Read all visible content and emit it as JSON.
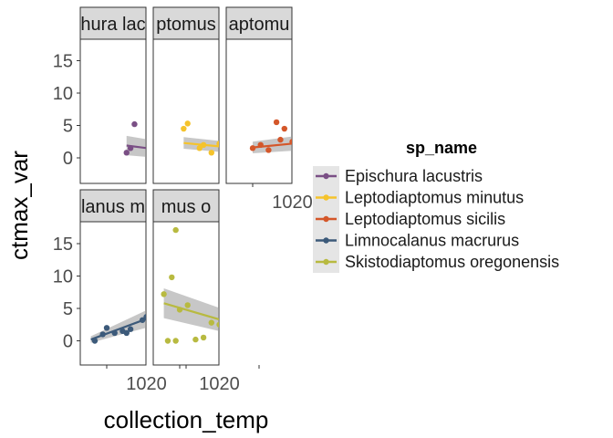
{
  "chart_data": {
    "type": "scatter",
    "facet_layout": "wrap-3-columns",
    "xlabel": "collection_temp",
    "ylabel": "ctmax_var",
    "legend_title": "sp_name",
    "legend_position": "right",
    "grid": false,
    "smooth": "linear-fit-with-confidence-band",
    "xlim": [
      6.5,
      27
    ],
    "ylim": [
      -3.8,
      18.8
    ],
    "x_ticks": [
      10,
      20
    ],
    "x_tick_labels": [
      "10",
      "20"
    ],
    "y_ticks": [
      0,
      5,
      10,
      15
    ],
    "y_tick_labels": [
      "0",
      "5",
      "10",
      "15"
    ],
    "panels": [
      {
        "strip_label": "Epischura lacustris",
        "strip_visible": "hura lac",
        "color": "#7A4F85",
        "points": [
          [
            13.5,
            5.2
          ],
          [
            12.5,
            0.8
          ],
          [
            13.0,
            1.5
          ],
          [
            15.5,
            1.2
          ],
          [
            16.5,
            0.4
          ],
          [
            17.5,
            0.6
          ],
          [
            18.0,
            0.2
          ],
          [
            18.5,
            0.8
          ],
          [
            19.0,
            0.3
          ],
          [
            20.0,
            0.4
          ],
          [
            20.5,
            0.0
          ],
          [
            21.0,
            0.5
          ],
          [
            22.0,
            0.1
          ],
          [
            22.5,
            0.0
          ],
          [
            23.0,
            0.3
          ],
          [
            24.0,
            0.6
          ],
          [
            24.5,
            0.2
          ],
          [
            25.5,
            0.5
          ],
          [
            25.0,
            0.0
          ]
        ],
        "fit": {
          "x": [
            12.5,
            25.5
          ],
          "y": [
            1.9,
            -0.1
          ],
          "ci_low": [
            0.4,
            -0.9
          ],
          "ci_high": [
            3.4,
            0.7
          ]
        },
        "has_x_axis": false
      },
      {
        "strip_label": "Leptodiaptomus minutus",
        "strip_visible": "ptomus",
        "color": "#F5C32C",
        "points": [
          [
            10.5,
            4.5
          ],
          [
            11.0,
            5.3
          ],
          [
            12.5,
            1.5
          ],
          [
            13.0,
            2.0
          ],
          [
            14.0,
            0.8
          ],
          [
            15.0,
            2.2
          ],
          [
            15.5,
            0.0
          ],
          [
            16.5,
            1.8
          ],
          [
            17.0,
            1.0
          ],
          [
            18.0,
            1.5
          ],
          [
            18.5,
            0.5
          ],
          [
            19.0,
            2.0
          ],
          [
            19.5,
            0.2
          ],
          [
            20.0,
            4.5
          ],
          [
            20.5,
            1.2
          ],
          [
            21.0,
            0.6
          ],
          [
            21.5,
            0.0
          ],
          [
            22.0,
            1.0
          ],
          [
            22.5,
            0.3
          ],
          [
            23.0,
            1.5
          ],
          [
            23.5,
            0.4
          ],
          [
            24.0,
            0.8
          ],
          [
            24.5,
            0.0
          ],
          [
            25.0,
            0.6
          ],
          [
            25.5,
            0.2
          ],
          [
            26.0,
            0.5
          ]
        ],
        "fit": {
          "x": [
            10.5,
            26.5
          ],
          "y": [
            2.3,
            0.4
          ],
          "ci_low": [
            1.4,
            -0.3
          ],
          "ci_high": [
            3.2,
            1.1
          ]
        },
        "has_x_axis": false
      },
      {
        "strip_label": "Leptodiaptomus sicilis",
        "strip_visible": "aptomu",
        "color": "#D4572A",
        "points": [
          [
            10.0,
            1.5
          ],
          [
            11.0,
            2.0
          ],
          [
            12.0,
            1.2
          ],
          [
            13.0,
            5.5
          ],
          [
            13.5,
            2.8
          ],
          [
            14.0,
            4.5
          ],
          [
            15.0,
            2.5
          ],
          [
            15.5,
            1.5
          ],
          [
            16.0,
            0.8
          ],
          [
            16.5,
            2.2
          ],
          [
            17.0,
            1.0
          ],
          [
            18.0,
            2.8
          ],
          [
            18.5,
            3.5
          ],
          [
            19.0,
            0.5
          ],
          [
            19.5,
            2.5
          ]
        ],
        "fit": {
          "x": [
            10.0,
            20.0
          ],
          "y": [
            1.6,
            2.8
          ],
          "ci_low": [
            0.7,
            1.5
          ],
          "ci_high": [
            2.5,
            4.1
          ]
        },
        "has_x_axis": true
      },
      {
        "strip_label": "Limnocalanus macrurus",
        "strip_visible": "lanus m",
        "color": "#3C5A7A",
        "points": [
          [
            8.5,
            0.0
          ],
          [
            9.5,
            1.0
          ],
          [
            10.0,
            2.0
          ],
          [
            11.0,
            1.2
          ],
          [
            12.0,
            1.5
          ],
          [
            12.5,
            1.2
          ],
          [
            13.0,
            1.8
          ],
          [
            15.0,
            3.7
          ],
          [
            14.5,
            3.2
          ]
        ],
        "fit": {
          "x": [
            8.0,
            15.5
          ],
          "y": [
            0.2,
            3.6
          ],
          "ci_low": [
            -0.3,
            2.2
          ],
          "ci_high": [
            0.7,
            5.0
          ]
        },
        "has_x_axis": true
      },
      {
        "strip_label": "Skistodiaptomus oregonensis",
        "strip_visible": "mus o",
        "color": "#B8BA40",
        "points": [
          [
            9.5,
            17.1
          ],
          [
            9.0,
            9.8
          ],
          [
            8.0,
            7.2
          ],
          [
            8.5,
            0.0
          ],
          [
            9.5,
            0.0
          ],
          [
            10.0,
            4.8
          ],
          [
            11.0,
            5.5
          ],
          [
            12.0,
            0.2
          ],
          [
            13.0,
            0.5
          ],
          [
            14.0,
            2.8
          ],
          [
            15.0,
            2.5
          ],
          [
            15.5,
            0.8
          ],
          [
            16.0,
            1.8
          ],
          [
            17.0,
            1.0
          ],
          [
            18.0,
            0.5
          ],
          [
            18.5,
            2.2
          ],
          [
            19.0,
            1.5
          ],
          [
            19.5,
            0.2
          ],
          [
            20.0,
            0.8
          ],
          [
            20.5,
            0.0
          ],
          [
            21.0,
            0.5
          ],
          [
            21.5,
            1.0
          ],
          [
            22.0,
            0.3
          ],
          [
            22.5,
            0.6
          ],
          [
            23.0,
            0.0
          ],
          [
            23.5,
            0.8
          ],
          [
            24.0,
            0.2
          ]
        ],
        "fit": {
          "x": [
            8.0,
            24.5
          ],
          "y": [
            5.8,
            -0.1
          ],
          "ci_low": [
            3.5,
            -1.2
          ],
          "ci_high": [
            8.1,
            1.0
          ]
        },
        "has_x_axis": true
      }
    ],
    "legend": [
      {
        "label": "Epischura lacustris",
        "color": "#7A4F85"
      },
      {
        "label": "Leptodiaptomus minutus",
        "color": "#F5C32C"
      },
      {
        "label": "Leptodiaptomus sicilis",
        "color": "#D4572A"
      },
      {
        "label": "Limnocalanus macrurus",
        "color": "#3C5A7A"
      },
      {
        "label": "Skistodiaptomus oregonensis",
        "color": "#B8BA40"
      }
    ],
    "colors": {
      "strip_fill": "#D9D9D9",
      "band_fill": "#999999",
      "panel_border": "#333333"
    }
  }
}
